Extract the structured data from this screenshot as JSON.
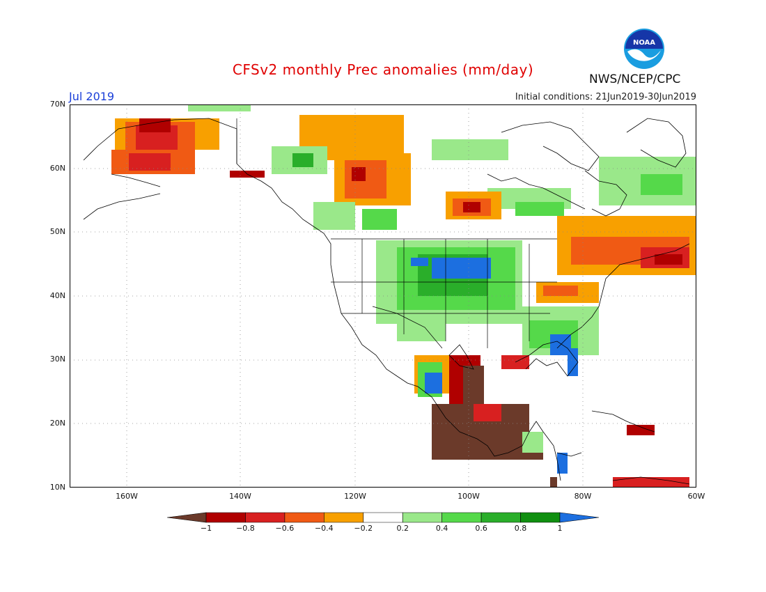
{
  "header": {
    "title": "CFSv2 monthly Prec anomalies (mm/day)",
    "month": "Jul 2019",
    "initial_conditions": "Initial conditions: 21Jun2019-30Jun2019",
    "agency": "NWS/NCEP/CPC",
    "logo_text": "NOAA"
  },
  "map": {
    "lat_labels": [
      "70N",
      "60N",
      "50N",
      "40N",
      "30N",
      "20N",
      "10N"
    ],
    "lon_labels": [
      "160W",
      "140W",
      "120W",
      "100W",
      "80W",
      "60W"
    ],
    "colors": {
      "lt_-1": "#6b3a2a",
      "-1_-0.8": "#b00000",
      "-0.8_-0.6": "#d82020",
      "-0.6_-0.4": "#f05a14",
      "-0.4_-0.2": "#f8a000",
      "-0.2_0.2": "#ffffff",
      "0.2_0.4": "#9ae88a",
      "0.4_0.6": "#55d94a",
      "0.6_0.8": "#2aae2a",
      "0.8_1": "#108f10",
      "gt_1": "#1c6fe0"
    }
  },
  "colorbar": {
    "labels": [
      "−1",
      "−0.8",
      "−0.6",
      "−0.4",
      "−0.2",
      "0.2",
      "0.4",
      "0.6",
      "0.8",
      "1"
    ],
    "colors": [
      "#6b3a2a",
      "#b00000",
      "#d82020",
      "#f05a14",
      "#f8a000",
      "#ffffff",
      "#9ae88a",
      "#55d94a",
      "#2aae2a",
      "#108f10",
      "#1c6fe0"
    ]
  }
}
